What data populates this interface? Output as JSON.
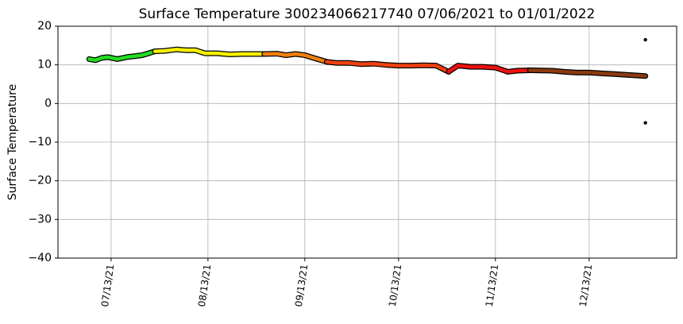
{
  "chart_data": {
    "type": "line",
    "title": "Surface Temperature 300234066217740  07/06/2021 to 01/01/2022",
    "y_label": "Surface Temperature",
    "xlim": [
      "2021-06-26",
      "2022-01-10"
    ],
    "xticks": [
      {
        "value": "2021-07-13",
        "label": "07/13/21"
      },
      {
        "value": "2021-08-13",
        "label": "08/13/21"
      },
      {
        "value": "2021-09-13",
        "label": "09/13/21"
      },
      {
        "value": "2021-10-13",
        "label": "10/13/21"
      },
      {
        "value": "2021-11-13",
        "label": "11/13/21"
      },
      {
        "value": "2021-12-13",
        "label": "12/13/21"
      }
    ],
    "ylim": [
      -40,
      20
    ],
    "yticks": [
      {
        "value": -40,
        "label": "−40"
      },
      {
        "value": -30,
        "label": "−30"
      },
      {
        "value": -20,
        "label": "−20"
      },
      {
        "value": -10,
        "label": "−10"
      },
      0,
      10,
      20
    ],
    "grid": true,
    "series": [
      {
        "color": "#22dd22",
        "x": [
          "2021-07-06",
          "2021-07-08",
          "2021-07-10",
          "2021-07-12",
          "2021-07-15",
          "2021-07-18",
          "2021-07-21",
          "2021-07-23",
          "2021-07-25",
          "2021-07-27"
        ],
        "values": [
          11.5,
          11.2,
          11.8,
          12.0,
          11.5,
          12.0,
          12.3,
          12.5,
          13.0,
          13.5
        ]
      },
      {
        "color": "#f5f000",
        "x": [
          "2021-07-27",
          "2021-07-30",
          "2021-08-03",
          "2021-08-06",
          "2021-08-09",
          "2021-08-12",
          "2021-08-16",
          "2021-08-20",
          "2021-08-24",
          "2021-08-28",
          "2021-08-31"
        ],
        "values": [
          13.5,
          13.6,
          14.0,
          13.8,
          13.8,
          13.0,
          13.0,
          12.7,
          12.8,
          12.8,
          12.8
        ]
      },
      {
        "color": "#f08010",
        "x": [
          "2021-08-31",
          "2021-09-04",
          "2021-09-07",
          "2021-09-10",
          "2021-09-13",
          "2021-09-17",
          "2021-09-20"
        ],
        "values": [
          12.8,
          12.9,
          12.5,
          12.8,
          12.5,
          11.5,
          10.8
        ]
      },
      {
        "color": "#f04010",
        "x": [
          "2021-09-20",
          "2021-09-23",
          "2021-09-27",
          "2021-10-01",
          "2021-10-05",
          "2021-10-09",
          "2021-10-13",
          "2021-10-17",
          "2021-10-21",
          "2021-10-25",
          "2021-10-29"
        ],
        "values": [
          10.8,
          10.5,
          10.5,
          10.2,
          10.3,
          10.0,
          9.8,
          9.8,
          9.9,
          9.8,
          8.2
        ]
      },
      {
        "color": "#ee1010",
        "x": [
          "2021-10-29",
          "2021-11-01",
          "2021-11-05",
          "2021-11-09",
          "2021-11-13",
          "2021-11-17",
          "2021-11-20",
          "2021-11-24"
        ],
        "values": [
          8.2,
          9.8,
          9.5,
          9.5,
          9.3,
          8.2,
          8.5,
          8.6
        ]
      },
      {
        "color": "#8b3a10",
        "x": [
          "2021-11-24",
          "2021-12-01",
          "2021-12-05",
          "2021-12-09",
          "2021-12-13",
          "2021-12-17",
          "2021-12-21",
          "2021-12-25",
          "2021-12-29",
          "2021-12-31"
        ],
        "values": [
          8.6,
          8.5,
          8.2,
          8.0,
          8.0,
          7.8,
          7.6,
          7.4,
          7.2,
          7.1
        ]
      },
      {
        "color": "#000000",
        "style": "points",
        "x": [
          "2021-12-31",
          "2021-12-31"
        ],
        "values": [
          16.5,
          -5
        ]
      }
    ]
  }
}
